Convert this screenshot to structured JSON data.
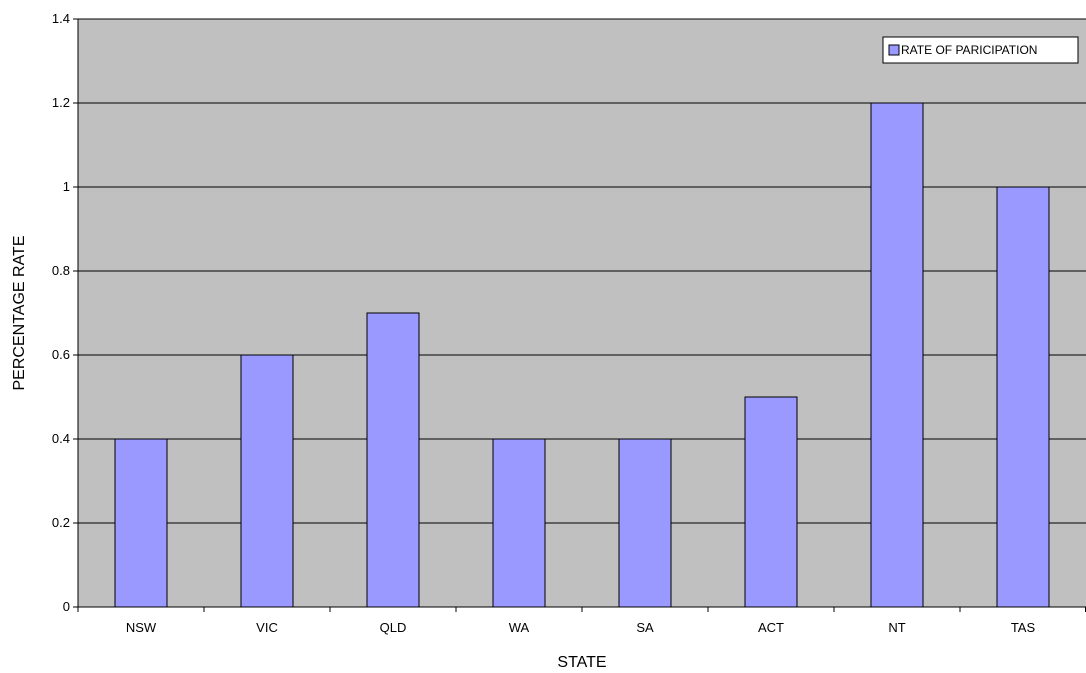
{
  "chart_data": {
    "type": "bar",
    "title": "",
    "xlabel": "STATE",
    "ylabel": "PERCENTAGE RATE",
    "categories": [
      "NSW",
      "VIC",
      "QLD",
      "WA",
      "SA",
      "ACT",
      "NT",
      "TAS"
    ],
    "series": [
      {
        "name": "RATE OF PARICIPATION",
        "values": [
          0.4,
          0.6,
          0.7,
          0.4,
          0.4,
          0.5,
          1.2,
          1.0
        ]
      }
    ],
    "ylim": [
      0,
      1.4
    ],
    "yticks": [
      "0",
      "0.2",
      "0.4",
      "0.6",
      "0.8",
      "1",
      "1.2",
      "1.4"
    ],
    "grid": true,
    "legend_position": "top-right",
    "colors": {
      "bar": "#9999ff",
      "plot_background": "#c0c0c0",
      "gridline": "#000000"
    }
  }
}
